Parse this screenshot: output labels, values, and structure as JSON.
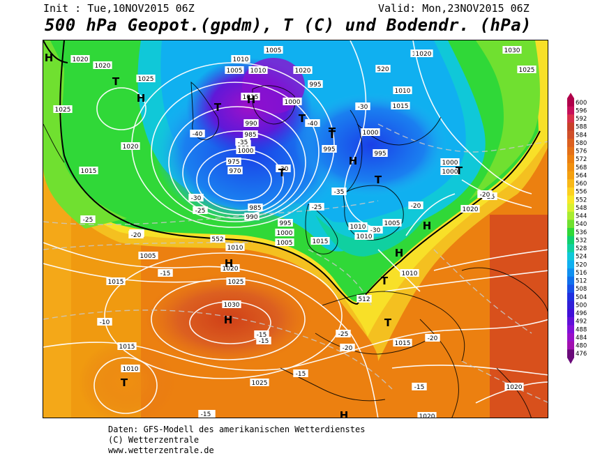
{
  "header": {
    "init": "Init : Tue,10NOV2015 06Z",
    "valid": "Valid: Mon,23NOV2015 06Z",
    "title": "500 hPa Geopot.(gpdm), T (C) und Bodendr. (hPa)"
  },
  "footer": {
    "line1": "Daten: GFS-Modell des amerikanischen Wetterdienstes",
    "line2": "(C) Wetterzentrale",
    "line3": "www.wetterzentrale.de"
  },
  "legend": {
    "ticks": [
      "600",
      "596",
      "592",
      "588",
      "584",
      "580",
      "576",
      "572",
      "568",
      "564",
      "560",
      "556",
      "552",
      "548",
      "544",
      "540",
      "536",
      "532",
      "528",
      "524",
      "520",
      "516",
      "512",
      "508",
      "504",
      "500",
      "496",
      "492",
      "488",
      "484",
      "480",
      "476"
    ],
    "colors": [
      "#b0004a",
      "#c6105a",
      "#d8304a",
      "#c8402a",
      "#d0502a",
      "#dc6020",
      "#e47018",
      "#ec8010",
      "#f09010",
      "#f4a010",
      "#f8b818",
      "#fcd020",
      "#f8e828",
      "#d8f030",
      "#a8ec30",
      "#70e030",
      "#30d838",
      "#10d070",
      "#10d0a0",
      "#10c8d8",
      "#10b0f0",
      "#1090f0",
      "#1070ec",
      "#1850e8",
      "#2030e0",
      "#3020d8",
      "#4010d8",
      "#6010d8",
      "#8010d8",
      "#9810c8",
      "#a010b0",
      "#6a0a7a"
    ]
  },
  "map": {
    "pressure_labels": [
      {
        "text": "1020"
      },
      {
        "text": "1010"
      },
      {
        "text": "1005"
      },
      {
        "text": "1025"
      },
      {
        "text": "1030"
      },
      {
        "text": "1020"
      },
      {
        "text": "1025"
      },
      {
        "text": "1005"
      },
      {
        "text": "1010"
      },
      {
        "text": "1020"
      },
      {
        "text": "995"
      },
      {
        "text": "1015"
      },
      {
        "text": "1010"
      },
      {
        "text": "1025"
      },
      {
        "text": "1015"
      },
      {
        "text": "1025"
      },
      {
        "text": "1000"
      },
      {
        "text": "1020"
      },
      {
        "text": "995"
      },
      {
        "text": "1000"
      },
      {
        "text": "990"
      },
      {
        "text": "985"
      },
      {
        "text": "980"
      },
      {
        "text": "975"
      },
      {
        "text": "970"
      },
      {
        "text": "1000"
      },
      {
        "text": "1020"
      },
      {
        "text": "995"
      },
      {
        "text": "1015"
      },
      {
        "text": "1000"
      },
      {
        "text": "1000"
      },
      {
        "text": "995"
      },
      {
        "text": "1005"
      },
      {
        "text": "985"
      },
      {
        "text": "990"
      },
      {
        "text": "995"
      },
      {
        "text": "1000"
      },
      {
        "text": "1005"
      },
      {
        "text": "1015"
      },
      {
        "text": "1005"
      },
      {
        "text": "1010"
      },
      {
        "text": "1010"
      },
      {
        "text": "1005"
      },
      {
        "text": "1010"
      },
      {
        "text": "1010"
      },
      {
        "text": "1020"
      },
      {
        "text": "1015"
      },
      {
        "text": "1025"
      },
      {
        "text": "1030"
      },
      {
        "text": "1015"
      },
      {
        "text": "1010"
      },
      {
        "text": "1025"
      },
      {
        "text": "1015"
      },
      {
        "text": "1020"
      },
      {
        "text": "1020"
      },
      {
        "text": "1020"
      }
    ],
    "temperature_labels": [
      {
        "text": "-30"
      },
      {
        "text": "-40"
      },
      {
        "text": "-40"
      },
      {
        "text": "-35"
      },
      {
        "text": "-30"
      },
      {
        "text": "-30"
      },
      {
        "text": "-25"
      },
      {
        "text": "-35"
      },
      {
        "text": "-25"
      },
      {
        "text": "-20"
      },
      {
        "text": "-30"
      },
      {
        "text": "-25"
      },
      {
        "text": "-25"
      },
      {
        "text": "-20"
      },
      {
        "text": "-20"
      },
      {
        "text": "-15"
      },
      {
        "text": "-15"
      },
      {
        "text": "-10"
      },
      {
        "text": "-15"
      },
      {
        "text": "-25"
      },
      {
        "text": "-20"
      },
      {
        "text": "-20"
      },
      {
        "text": "-15"
      },
      {
        "text": "-15"
      },
      {
        "text": "-15"
      },
      {
        "text": "-20"
      },
      {
        "text": "-15"
      }
    ],
    "geopotential_labels": [
      {
        "text": "552"
      },
      {
        "text": "512"
      },
      {
        "text": "520"
      }
    ],
    "pressure_centers": [
      {
        "text": "H"
      },
      {
        "text": "T"
      },
      {
        "text": "H"
      },
      {
        "text": "T"
      },
      {
        "text": "H"
      },
      {
        "text": "T"
      },
      {
        "text": "H"
      },
      {
        "text": "T"
      },
      {
        "text": "T"
      },
      {
        "text": "T"
      },
      {
        "text": "H"
      },
      {
        "text": "T"
      },
      {
        "text": "T"
      },
      {
        "text": "H"
      },
      {
        "text": "T"
      },
      {
        "text": "H"
      },
      {
        "text": "T"
      },
      {
        "text": "H"
      },
      {
        "text": "T"
      },
      {
        "text": "H"
      }
    ]
  }
}
